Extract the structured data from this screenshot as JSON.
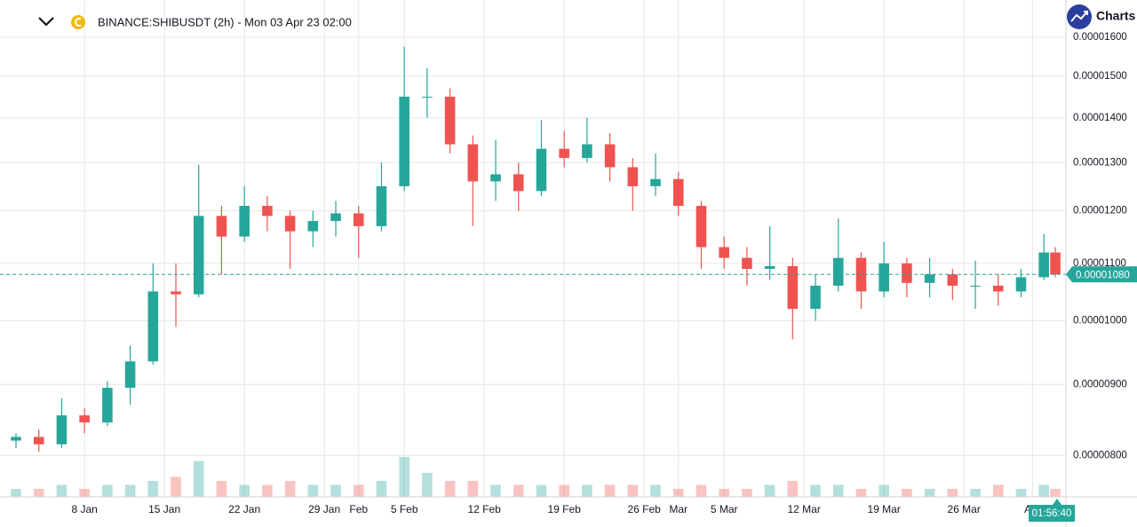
{
  "brand": "Charts",
  "chart_data": {
    "type": "candlestick",
    "title": "BINANCE:SHIBUSDT (2h) - Mon 03 Apr 23 02:00",
    "x": [
      2,
      4,
      6,
      8,
      10,
      12,
      14,
      16,
      18,
      20,
      22,
      24,
      26,
      28,
      30,
      32,
      34,
      36,
      38,
      40,
      42,
      44,
      46,
      48,
      50,
      52,
      54,
      56,
      58,
      60,
      62,
      64,
      66,
      68,
      70,
      72,
      74,
      76,
      78,
      80,
      82,
      84,
      86,
      88,
      90,
      92,
      93
    ],
    "open": [
      8.2e-06,
      8.25e-06,
      8.15e-06,
      8.55e-06,
      8.45e-06,
      8.95e-06,
      9.35e-06,
      1.05e-05,
      1.045e-05,
      1.19e-05,
      1.15e-05,
      1.21e-05,
      1.19e-05,
      1.16e-05,
      1.18e-05,
      1.195e-05,
      1.17e-05,
      1.25e-05,
      1.45e-05,
      1.45e-05,
      1.34e-05,
      1.26e-05,
      1.275e-05,
      1.24e-05,
      1.33e-05,
      1.31e-05,
      1.34e-05,
      1.29e-05,
      1.25e-05,
      1.265e-05,
      1.21e-05,
      1.13e-05,
      1.11e-05,
      1.09e-05,
      1.095e-05,
      1.02e-05,
      1.06e-05,
      1.11e-05,
      1.05e-05,
      1.1e-05,
      1.065e-05,
      1.08e-05,
      1.06e-05,
      1.06e-05,
      1.05e-05,
      1.075e-05,
      1.12e-05
    ],
    "high": [
      8.3e-06,
      8.35e-06,
      8.8e-06,
      8.65e-06,
      9.05e-06,
      9.6e-06,
      1.1e-05,
      1.1e-05,
      1.295e-05,
      1.21e-05,
      1.25e-05,
      1.23e-05,
      1.2e-05,
      1.2e-05,
      1.22e-05,
      1.21e-05,
      1.3e-05,
      1.575e-05,
      1.52e-05,
      1.47e-05,
      1.36e-05,
      1.35e-05,
      1.3e-05,
      1.395e-05,
      1.37e-05,
      1.4e-05,
      1.365e-05,
      1.31e-05,
      1.32e-05,
      1.28e-05,
      1.22e-05,
      1.15e-05,
      1.13e-05,
      1.17e-05,
      1.11e-05,
      1.08e-05,
      1.185e-05,
      1.12e-05,
      1.14e-05,
      1.11e-05,
      1.11e-05,
      1.09e-05,
      1.105e-05,
      1.08e-05,
      1.09e-05,
      1.155e-05,
      1.13e-05
    ],
    "low": [
      8.1e-06,
      8.05e-06,
      8.1e-06,
      8.3e-06,
      8.4e-06,
      8.7e-06,
      9.3e-06,
      9.9e-06,
      1.04e-05,
      1.08e-05,
      1.14e-05,
      1.16e-05,
      1.09e-05,
      1.13e-05,
      1.15e-05,
      1.11e-05,
      1.16e-05,
      1.24e-05,
      1.4e-05,
      1.32e-05,
      1.17e-05,
      1.22e-05,
      1.2e-05,
      1.23e-05,
      1.29e-05,
      1.3e-05,
      1.26e-05,
      1.2e-05,
      1.23e-05,
      1.19e-05,
      1.09e-05,
      1.09e-05,
      1.06e-05,
      1.07e-05,
      9.7e-06,
      1e-05,
      1.05e-05,
      1.02e-05,
      1.04e-05,
      1.04e-05,
      1.04e-05,
      1.035e-05,
      1.02e-05,
      1.025e-05,
      1.04e-05,
      1.07e-05,
      1.075e-05
    ],
    "close": [
      8.25e-06,
      8.15e-06,
      8.55e-06,
      8.45e-06,
      8.95e-06,
      9.35e-06,
      1.05e-05,
      1.045e-05,
      1.19e-05,
      1.15e-05,
      1.21e-05,
      1.19e-05,
      1.16e-05,
      1.18e-05,
      1.195e-05,
      1.17e-05,
      1.25e-05,
      1.45e-05,
      1.45e-05,
      1.34e-05,
      1.26e-05,
      1.275e-05,
      1.24e-05,
      1.33e-05,
      1.31e-05,
      1.34e-05,
      1.29e-05,
      1.25e-05,
      1.265e-05,
      1.21e-05,
      1.13e-05,
      1.11e-05,
      1.09e-05,
      1.095e-05,
      1.02e-05,
      1.06e-05,
      1.11e-05,
      1.05e-05,
      1.1e-05,
      1.065e-05,
      1.08e-05,
      1.06e-05,
      1.06e-05,
      1.05e-05,
      1.075e-05,
      1.12e-05,
      1.08e-05
    ],
    "volume": [
      2,
      2,
      3,
      2,
      3,
      3,
      4,
      5,
      9,
      4,
      3,
      3,
      4,
      3,
      3,
      3,
      4,
      10,
      6,
      4,
      4,
      3,
      3,
      3,
      3,
      3,
      3,
      3,
      3,
      2,
      3,
      2,
      2,
      3,
      4,
      3,
      3,
      2,
      3,
      2,
      2,
      2,
      2,
      3,
      2,
      3,
      2
    ],
    "up_color": "#26a69a",
    "down_color": "#ef5350",
    "log_scale": true,
    "grid": true,
    "xlim": [
      0.6,
      93.93
    ],
    "ylim": [
      7.47e-06,
      1.702e-05
    ],
    "xticks": [
      {
        "value": 8,
        "label": "8 Jan"
      },
      {
        "value": 15,
        "label": "15 Jan"
      },
      {
        "value": 22,
        "label": "22 Jan"
      },
      {
        "value": 29,
        "label": "29 Jan"
      },
      {
        "value": 32,
        "label": "Feb"
      },
      {
        "value": 36,
        "label": "5 Feb"
      },
      {
        "value": 43,
        "label": "12 Feb"
      },
      {
        "value": 50,
        "label": "19 Feb"
      },
      {
        "value": 57,
        "label": "26 Feb"
      },
      {
        "value": 60,
        "label": "Mar"
      },
      {
        "value": 64,
        "label": "5 Mar"
      },
      {
        "value": 71,
        "label": "12 Mar"
      },
      {
        "value": 78,
        "label": "19 Mar"
      },
      {
        "value": 85,
        "label": "26 Mar"
      },
      {
        "value": 91,
        "label": "Apr"
      }
    ],
    "yticks": [
      {
        "value": 8e-06,
        "label": "0.00000800"
      },
      {
        "value": 9e-06,
        "label": "0.00000900"
      },
      {
        "value": 1e-05,
        "label": "0.00001000"
      },
      {
        "value": 1.1e-05,
        "label": "0.00001100"
      },
      {
        "value": 1.2e-05,
        "label": "0.00001200"
      },
      {
        "value": 1.3e-05,
        "label": "0.00001300"
      },
      {
        "value": 1.4e-05,
        "label": "0.00001400"
      },
      {
        "value": 1.5e-05,
        "label": "0.00001500"
      },
      {
        "value": 1.6e-05,
        "label": "0.00001600"
      }
    ],
    "last_price": {
      "value": 1.08e-05,
      "label": "0.00001080"
    },
    "countdown": "01:56:40"
  }
}
